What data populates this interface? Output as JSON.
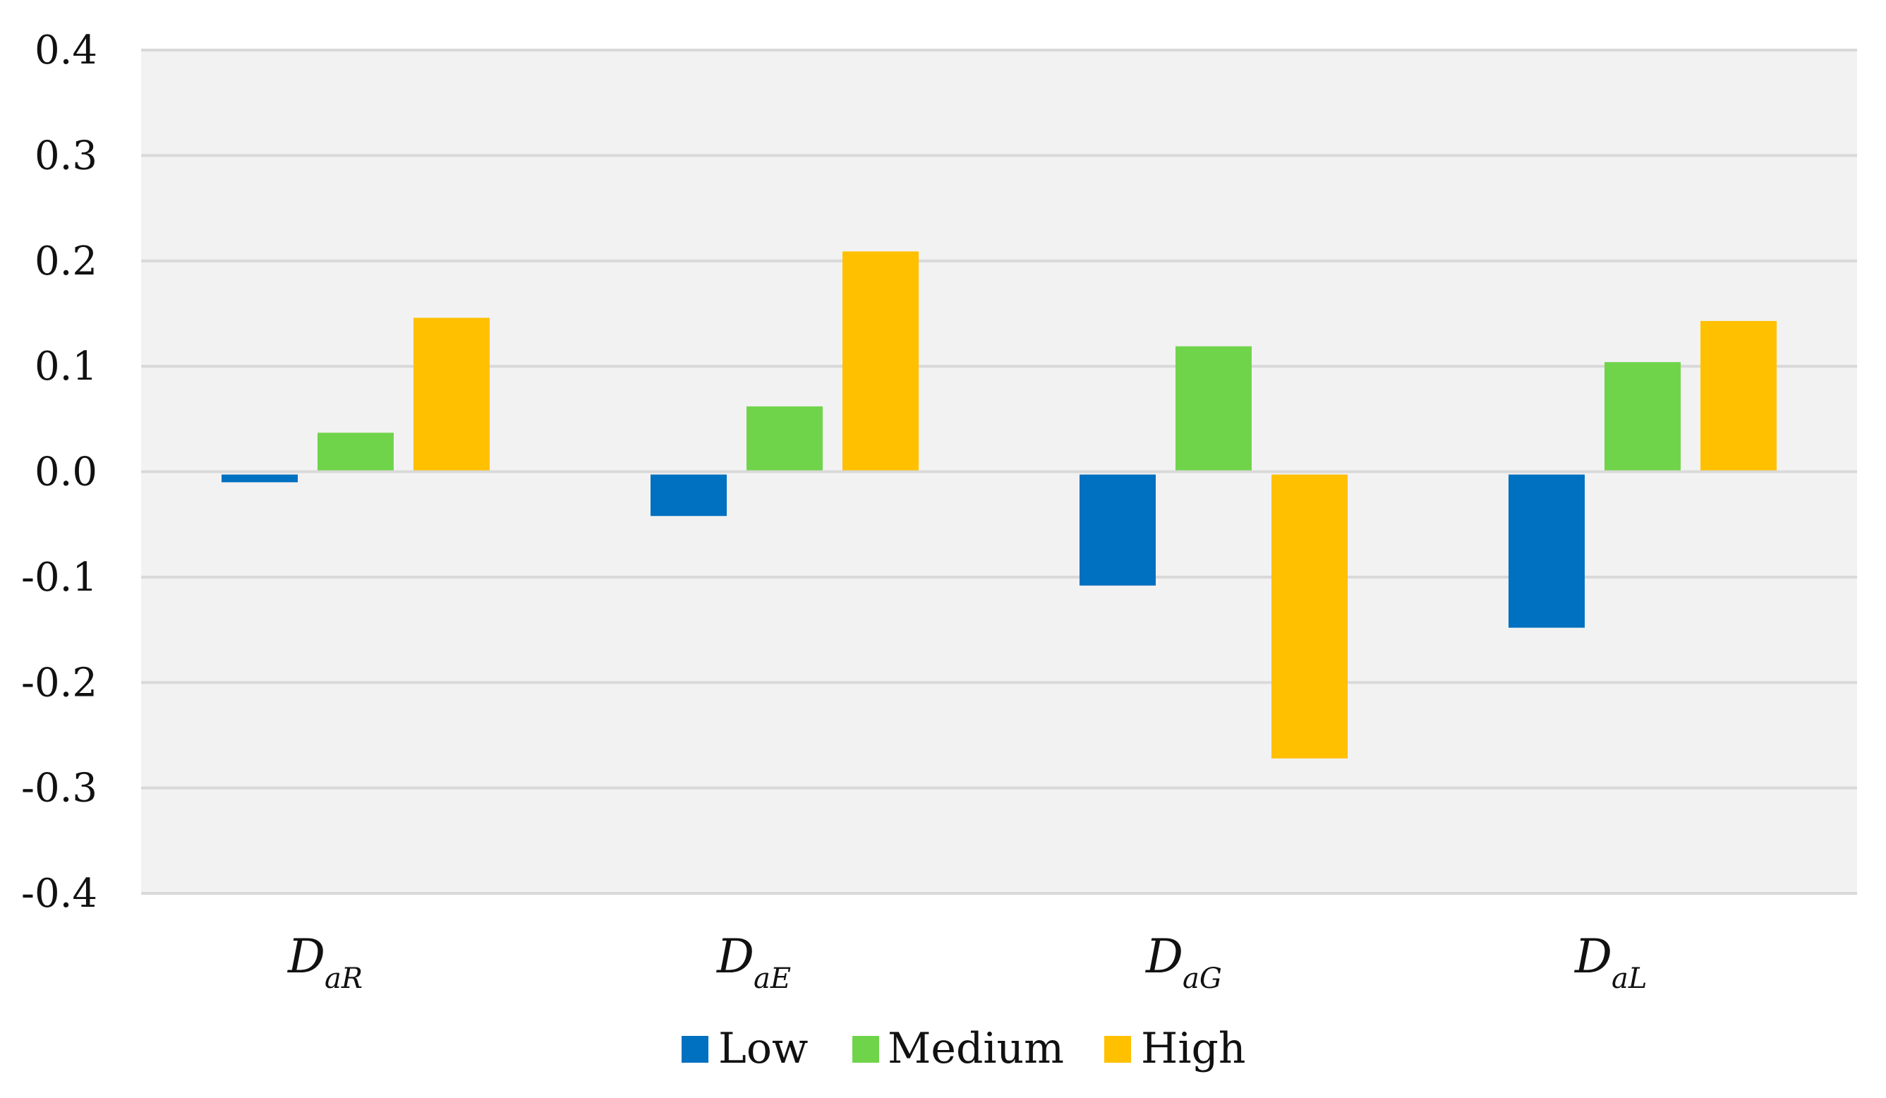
{
  "chart_data": {
    "type": "bar",
    "title": "",
    "xlabel": "",
    "ylabel": "",
    "ylim": [
      -0.4,
      0.4
    ],
    "yticks": [
      0.4,
      0.3,
      0.2,
      0.1,
      0.0,
      -0.1,
      -0.2,
      -0.3,
      -0.4
    ],
    "ytick_labels": [
      "0.4",
      "0.3",
      "0.2",
      "0.1",
      "0.0",
      "-0.1",
      "-0.2",
      "-0.3",
      "-0.4"
    ],
    "grid": true,
    "categories": [
      {
        "main": "D",
        "sub": "aR"
      },
      {
        "main": "D",
        "sub": "aE"
      },
      {
        "main": "D",
        "sub": "aG"
      },
      {
        "main": "D",
        "sub": "aL"
      }
    ],
    "series": [
      {
        "name": "Low",
        "color": "#0070C0",
        "values": [
          -0.01,
          -0.042,
          -0.108,
          -0.148
        ]
      },
      {
        "name": "Medium",
        "color": "#70D44B",
        "values": [
          0.037,
          0.062,
          0.119,
          0.104
        ]
      },
      {
        "name": "High",
        "color": "#FFC000",
        "values": [
          0.146,
          0.209,
          -0.272,
          0.143
        ]
      }
    ],
    "legend_position": "bottom-center",
    "plot_background": "#F2F2F2",
    "gridline_color": "#D9D9D9"
  }
}
